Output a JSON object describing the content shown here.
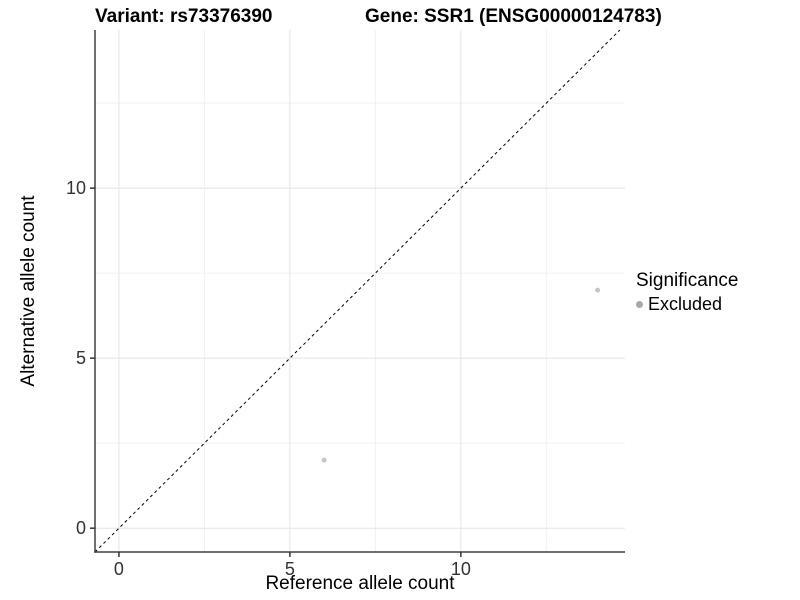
{
  "title": {
    "variant": "Variant: rs73376390",
    "gene": "Gene: SSR1 (ENSG00000124783)"
  },
  "axes": {
    "x_label": "Reference allele count",
    "y_label": "Alternative allele count"
  },
  "legend": {
    "title": "Significance",
    "items": [
      {
        "label": "Excluded",
        "color": "#a8a8a8"
      }
    ]
  },
  "chart_data": {
    "type": "scatter",
    "title": "Variant: rs73376390 / Gene: SSR1 (ENSG00000124783)",
    "xlabel": "Reference allele count",
    "ylabel": "Alternative allele count",
    "series": [
      {
        "name": "Excluded",
        "points": [
          {
            "x": 6,
            "y": 2
          },
          {
            "x": 14,
            "y": 7
          }
        ],
        "color": "#c6c6c6"
      }
    ],
    "identity_line": {
      "style": "dashed",
      "from": -0.7,
      "to": 14.65,
      "color": "#000000"
    },
    "xlim": [
      -0.7,
      14.8
    ],
    "ylim": [
      -0.7,
      14.65
    ],
    "x_ticks": [
      0,
      5,
      10
    ],
    "y_ticks": [
      0,
      5,
      10
    ],
    "x_minor_ticks": [
      2.5,
      7.5,
      12.5
    ],
    "y_minor_ticks": [
      2.5,
      7.5,
      12.5
    ],
    "grid": "major+minor",
    "legend_position": "right",
    "point_radius": 2.5,
    "colors": {
      "grid_major": "#e4e4e4",
      "grid_minor": "#f1f1f1",
      "axis_line": "#404040",
      "tick_mark": "#333333",
      "tick_label": "#333333",
      "point": "#c6c6c6",
      "background": "#ffffff"
    }
  }
}
